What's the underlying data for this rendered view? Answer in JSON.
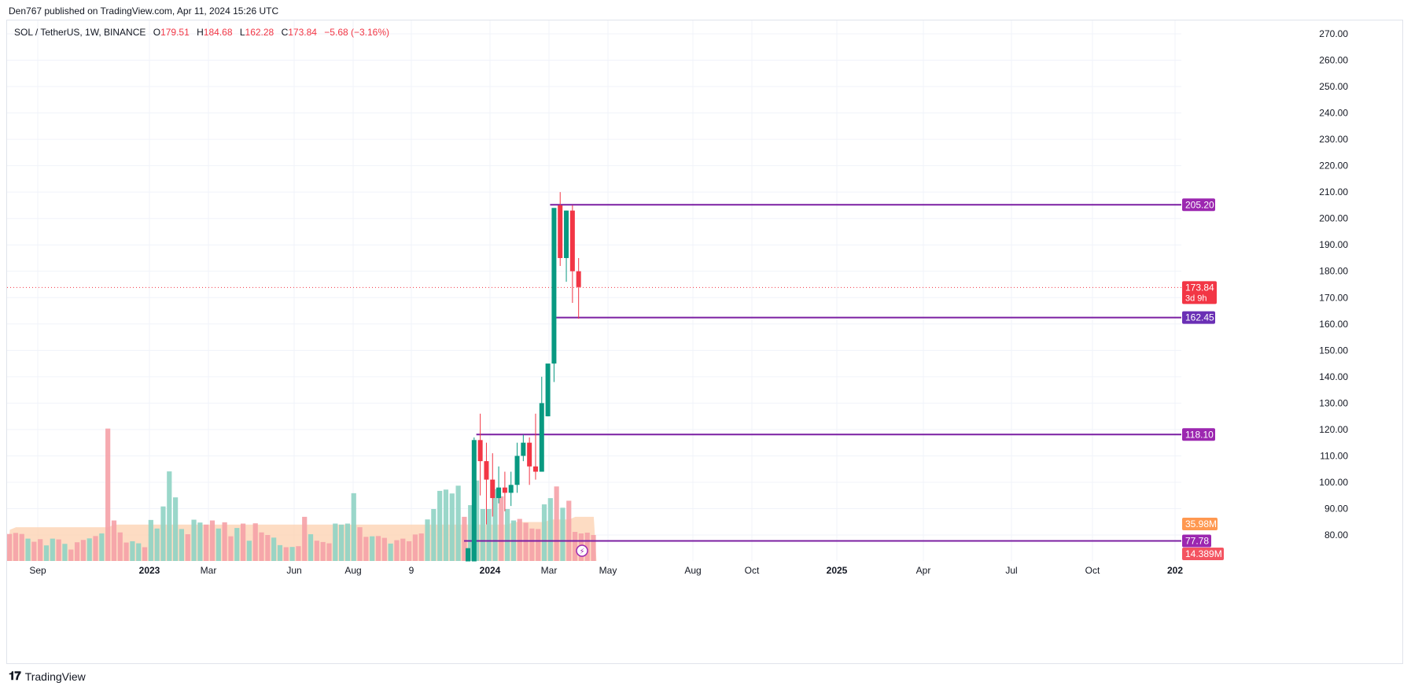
{
  "publish_line": "Den767 published on TradingView.com, Apr 11, 2024 15:26 UTC",
  "legend": {
    "symbol": "SOL / TetherUS, 1W, BINANCE",
    "o_label": "O",
    "o_value": "179.51",
    "h_label": "H",
    "h_value": "184.68",
    "l_label": "L",
    "l_value": "162.28",
    "c_label": "C",
    "c_value": "173.84",
    "change": "−5.68 (−3.16%)"
  },
  "footer": {
    "logo_text": "TradingView",
    "logo_icon": "tradingview-logo-icon"
  },
  "colors": {
    "up": "#089981",
    "down": "#f23645",
    "vol_up": "#8fd3c4",
    "vol_down": "#f5a1a7",
    "vol_ma_fill": "#fcd3b4",
    "level": "#7b1fa2",
    "level_label": "#9c27b0",
    "level_label_alt": "#6a2fb5",
    "vol_ma_label": "#ff9850"
  },
  "chart_data": {
    "type": "candlestick",
    "y_axis": {
      "ticks": [
        80,
        90,
        100,
        110,
        120,
        130,
        140,
        150,
        160,
        170,
        180,
        190,
        200,
        210,
        220,
        230,
        240,
        250,
        260,
        270
      ],
      "tick_labels": [
        "80.00",
        "90.00",
        "100.00",
        "110.00",
        "120.00",
        "130.00",
        "140.00",
        "150.00",
        "160.00",
        "170.00",
        "180.00",
        "190.00",
        "200.00",
        "210.00",
        "220.00",
        "230.00",
        "240.00",
        "250.00",
        "260.00",
        "270.00"
      ],
      "range": [
        70,
        274
      ]
    },
    "x_axis": {
      "labels": [
        "Sep",
        "2023",
        "Mar",
        "Jun",
        "Aug",
        "9",
        "2024",
        "Mar",
        "May",
        "Aug",
        "Oct",
        "2025",
        "Apr",
        "Jul",
        "Oct",
        "202"
      ],
      "bold": [
        false,
        true,
        false,
        false,
        false,
        false,
        true,
        false,
        false,
        false,
        false,
        true,
        false,
        false,
        false,
        true
      ]
    },
    "candles": {
      "dates": [
        "2023-12-04",
        "2023-12-11",
        "2023-12-18",
        "2023-12-25",
        "2024-01-01",
        "2024-01-08",
        "2024-01-15",
        "2024-01-22",
        "2024-01-29",
        "2024-02-05",
        "2024-02-12",
        "2024-02-19",
        "2024-02-26",
        "2024-03-04",
        "2024-03-11",
        "2024-03-18",
        "2024-03-25",
        "2024-04-01",
        "2024-04-08"
      ],
      "open": [
        70,
        70,
        116,
        108,
        101,
        94,
        98,
        96,
        99,
        110,
        115,
        106,
        104,
        125,
        145,
        205,
        185,
        203,
        180
      ],
      "high": [
        75,
        117,
        126,
        115,
        111,
        106,
        104,
        104,
        115,
        118,
        117,
        126,
        140,
        136,
        155,
        210,
        203,
        205,
        185
      ],
      "low": [
        70,
        70,
        95,
        84,
        87,
        92,
        89,
        91,
        96,
        108,
        99,
        101,
        104,
        125,
        138,
        182,
        176,
        168,
        162
      ],
      "close": [
        75,
        116,
        108,
        101,
        94,
        98,
        96,
        99,
        110,
        115,
        106,
        104,
        130,
        145,
        204,
        185,
        203,
        180,
        174
      ]
    },
    "volume_bars": {
      "heights": [
        10.4,
        10.8,
        10.4,
        8.6,
        7.4,
        8.4,
        6.0,
        8.6,
        8.3,
        6.6,
        4.4,
        7.2,
        8.1,
        8.7,
        9.6,
        10.6,
        51.0,
        15.6,
        11.0,
        7.1,
        7.6,
        6.8,
        5.3,
        15.8,
        12.5,
        21.0,
        34.5,
        24.5,
        12.3,
        10.3,
        15.9,
        14.8,
        14.0,
        15.6,
        12.5,
        14.9,
        9.5,
        12.7,
        14.4,
        7.8,
        14.5,
        11.0,
        10.0,
        9.0,
        6.1,
        5.3,
        5.4,
        5.7,
        17.0,
        10.3,
        7.8,
        7.3,
        6.8,
        14.4,
        14.0,
        14.4,
        26.1,
        13.0,
        9.3,
        9.5,
        9.6,
        8.9,
        6.7,
        8.0,
        8.6,
        7.6,
        10.2,
        10.6,
        16.0,
        20.0,
        27.0,
        27.5,
        26.0,
        29.0,
        17.0,
        21.5,
        31.0,
        20.0,
        20.0,
        27.7,
        24.9,
        20.0,
        15.6,
        16.2,
        14.7,
        12.5,
        12.3,
        21.8,
        24.2,
        28.7,
        20.5,
        23.2,
        11.2,
        10.6,
        10.9,
        10.0
      ],
      "colors": [
        "down",
        "down",
        "down",
        "up",
        "down",
        "down",
        "up",
        "up",
        "down",
        "up",
        "down",
        "down",
        "down",
        "up",
        "down",
        "up",
        "down",
        "down",
        "down",
        "down",
        "up",
        "up",
        "down",
        "up",
        "up",
        "up",
        "up",
        "up",
        "up",
        "down",
        "up",
        "up",
        "down",
        "down",
        "up",
        "down",
        "down",
        "up",
        "down",
        "up",
        "down",
        "down",
        "down",
        "up",
        "up",
        "down",
        "up",
        "down",
        "down",
        "up",
        "down",
        "down",
        "down",
        "up",
        "up",
        "up",
        "up",
        "down",
        "down",
        "up",
        "down",
        "down",
        "up",
        "down",
        "down",
        "down",
        "down",
        "down",
        "up",
        "up",
        "up",
        "up",
        "up",
        "up",
        "down",
        "up",
        "up",
        "up",
        "up",
        "up",
        "down",
        "up",
        "up",
        "down",
        "down",
        "down",
        "down",
        "up",
        "up",
        "down",
        "up",
        "down",
        "down",
        "down",
        "down",
        "down"
      ]
    },
    "horizontal_levels": [
      {
        "label": "205.20",
        "value": 205.2,
        "start_date": "2024-03-11",
        "color": "level_label"
      },
      {
        "label": "162.45",
        "value": 162.45,
        "start_date": "2024-03-18",
        "color": "level_label_alt"
      },
      {
        "label": "118.10",
        "value": 118.1,
        "start_date": "2023-12-18",
        "color": "level_label"
      },
      {
        "label": "77.78",
        "value": 77.78,
        "start_date": "2023-12-04",
        "color": "level_label"
      }
    ],
    "last_price": {
      "value": 173.84,
      "label": "173.84",
      "countdown": "3d 9h"
    },
    "volume_labels": {
      "ma": "35.98M",
      "current": "14.389M"
    }
  }
}
